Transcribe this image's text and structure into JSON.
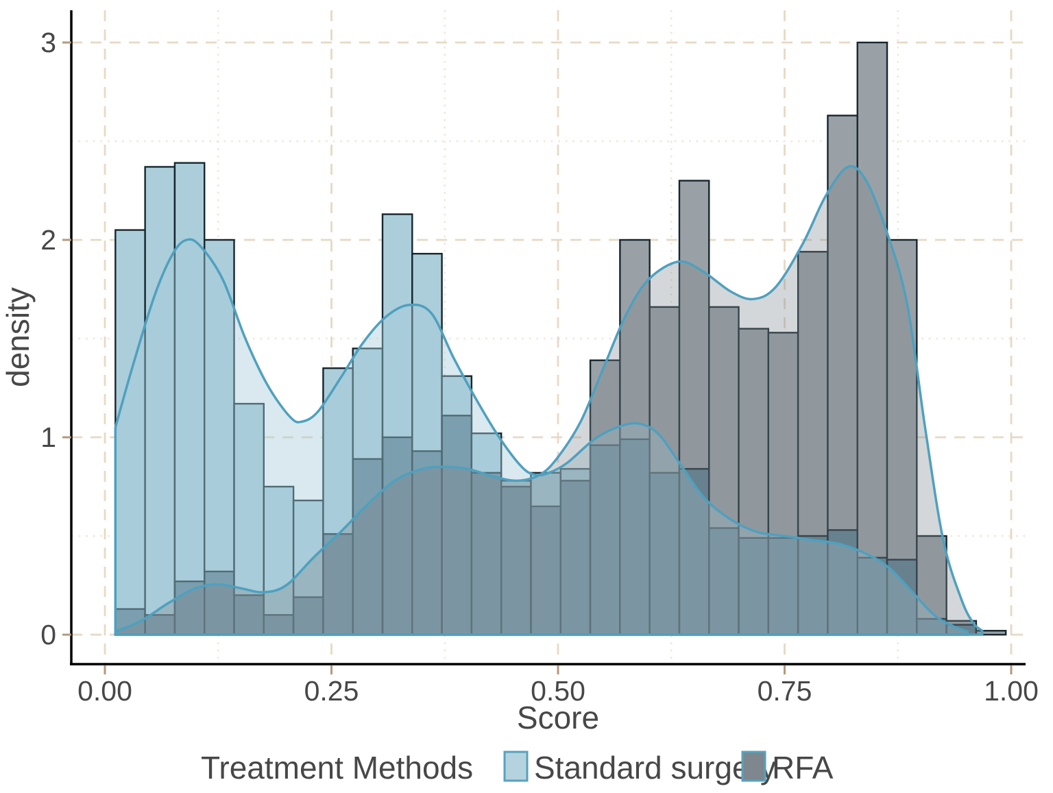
{
  "chart_data": {
    "type": "histogram+density",
    "xlabel": "Score",
    "ylabel": "density",
    "x_ticks": [
      {
        "v": 0.0,
        "label": "0.00"
      },
      {
        "v": 0.25,
        "label": "0.25"
      },
      {
        "v": 0.5,
        "label": "0.50"
      },
      {
        "v": 0.75,
        "label": "0.75"
      },
      {
        "v": 1.0,
        "label": "1.00"
      }
    ],
    "y_ticks": [
      {
        "v": 0,
        "label": "0"
      },
      {
        "v": 1,
        "label": "1"
      },
      {
        "v": 2,
        "label": "2"
      },
      {
        "v": 3,
        "label": "3"
      }
    ],
    "x_minor": [
      0.125,
      0.375,
      0.625,
      0.875
    ],
    "y_minor": [
      0.5,
      1.5,
      2.5
    ],
    "xlim": [
      -0.036,
      1.016
    ],
    "ylim": [
      -0.149,
      3.163
    ],
    "bin_start": 0.0116,
    "bin_width": 0.03275,
    "grid_on": true,
    "legend_position": "bottom",
    "series": [
      {
        "name": "Standard surgery",
        "bar_fill": "#abceda",
        "kde_fill": "rgba(165,203,216,0.42)",
        "bars": [
          2.05,
          2.37,
          2.39,
          2.0,
          1.17,
          0.75,
          0.68,
          1.35,
          1.45,
          2.13,
          1.93,
          1.31,
          1.02,
          0.78,
          0.82,
          0.84,
          0.96,
          0.99,
          0.82,
          0.84,
          0.54,
          0.49,
          0.49,
          0.5,
          0.53,
          0.39,
          0.38,
          0.08,
          0.05,
          0.0
        ],
        "kde": [
          [
            0.0116,
            1.05
          ],
          [
            0.03,
            1.35
          ],
          [
            0.055,
            1.72
          ],
          [
            0.075,
            1.93
          ],
          [
            0.09,
            2.0
          ],
          [
            0.105,
            1.97
          ],
          [
            0.13,
            1.8
          ],
          [
            0.155,
            1.5
          ],
          [
            0.18,
            1.26
          ],
          [
            0.205,
            1.1
          ],
          [
            0.218,
            1.08
          ],
          [
            0.235,
            1.13
          ],
          [
            0.26,
            1.3
          ],
          [
            0.285,
            1.48
          ],
          [
            0.31,
            1.61
          ],
          [
            0.335,
            1.67
          ],
          [
            0.36,
            1.63
          ],
          [
            0.385,
            1.4
          ],
          [
            0.41,
            1.19
          ],
          [
            0.435,
            1.0
          ],
          [
            0.46,
            0.85
          ],
          [
            0.475,
            0.81
          ],
          [
            0.49,
            0.82
          ],
          [
            0.51,
            0.87
          ],
          [
            0.54,
            0.99
          ],
          [
            0.565,
            1.05
          ],
          [
            0.588,
            1.07
          ],
          [
            0.61,
            1.02
          ],
          [
            0.634,
            0.87
          ],
          [
            0.66,
            0.7
          ],
          [
            0.69,
            0.585
          ],
          [
            0.72,
            0.52
          ],
          [
            0.75,
            0.5
          ],
          [
            0.78,
            0.48
          ],
          [
            0.81,
            0.46
          ],
          [
            0.84,
            0.41
          ],
          [
            0.865,
            0.34
          ],
          [
            0.89,
            0.22
          ],
          [
            0.915,
            0.1
          ],
          [
            0.935,
            0.045
          ],
          [
            0.952,
            0.015
          ]
        ]
      },
      {
        "name": "RFA",
        "bar_fill": "#9aa1a6",
        "kde_fill": "rgba(125,135,141,0.33)",
        "bars": [
          0.13,
          0.1,
          0.27,
          0.32,
          0.2,
          0.1,
          0.19,
          0.51,
          0.89,
          1.0,
          0.93,
          1.11,
          0.82,
          0.75,
          0.65,
          0.78,
          1.39,
          2.0,
          1.66,
          2.3,
          1.66,
          1.55,
          1.53,
          1.94,
          2.63,
          3.0,
          2.0,
          0.5,
          0.07,
          0.02
        ],
        "kde": [
          [
            0.0116,
            0.015
          ],
          [
            0.04,
            0.07
          ],
          [
            0.07,
            0.16
          ],
          [
            0.1,
            0.235
          ],
          [
            0.125,
            0.255
          ],
          [
            0.15,
            0.235
          ],
          [
            0.175,
            0.215
          ],
          [
            0.2,
            0.25
          ],
          [
            0.23,
            0.39
          ],
          [
            0.26,
            0.52
          ],
          [
            0.29,
            0.66
          ],
          [
            0.32,
            0.78
          ],
          [
            0.35,
            0.84
          ],
          [
            0.375,
            0.85
          ],
          [
            0.4,
            0.84
          ],
          [
            0.43,
            0.8
          ],
          [
            0.455,
            0.78
          ],
          [
            0.48,
            0.81
          ],
          [
            0.5,
            0.9
          ],
          [
            0.525,
            1.08
          ],
          [
            0.55,
            1.35
          ],
          [
            0.575,
            1.62
          ],
          [
            0.6,
            1.8
          ],
          [
            0.633,
            1.89
          ],
          [
            0.66,
            1.84
          ],
          [
            0.69,
            1.74
          ],
          [
            0.715,
            1.7
          ],
          [
            0.74,
            1.76
          ],
          [
            0.77,
            1.98
          ],
          [
            0.795,
            2.22
          ],
          [
            0.82,
            2.37
          ],
          [
            0.84,
            2.3
          ],
          [
            0.862,
            2.05
          ],
          [
            0.885,
            1.68
          ],
          [
            0.905,
            1.05
          ],
          [
            0.925,
            0.48
          ],
          [
            0.945,
            0.18
          ],
          [
            0.958,
            0.06
          ],
          [
            0.968,
            0.02
          ]
        ]
      }
    ],
    "overlap_fill": "#5d8090",
    "bar_stroke": "#16262e",
    "kde_stroke": "#4fa0bf"
  },
  "legend": {
    "title": "Treatment Methods",
    "items": [
      {
        "label": "Standard surgery",
        "fill": "#b5d3de"
      },
      {
        "label": "RFA",
        "fill": "#7d878d"
      }
    ],
    "swatch_border": "#56a2bf"
  },
  "style": {
    "grid_major": "#e7d9c5",
    "grid_minor": "#f0e6d8",
    "tick_color": "#b4997d",
    "text_color": "#474747",
    "axis_color": "#000000",
    "panel_bg": "#ffffff"
  }
}
